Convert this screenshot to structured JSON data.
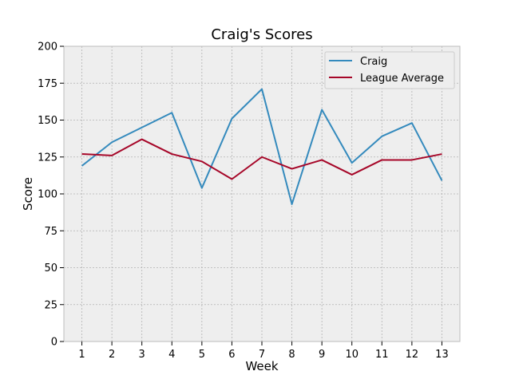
{
  "chart_data": {
    "type": "line",
    "title": "Craig's Scores",
    "xlabel": "Week",
    "ylabel": "Score",
    "x": [
      1,
      2,
      3,
      4,
      5,
      6,
      7,
      8,
      9,
      10,
      11,
      12,
      13
    ],
    "xlim": [
      0.4,
      13.6
    ],
    "ylim": [
      0,
      200
    ],
    "yticks": [
      0,
      25,
      50,
      75,
      100,
      125,
      150,
      175,
      200
    ],
    "grid": true,
    "legend_position": "top-right",
    "series": [
      {
        "name": "Craig",
        "color": "#348abd",
        "values": [
          119,
          135,
          145,
          155,
          104,
          151,
          171,
          93,
          157,
          121,
          139,
          148,
          109
        ]
      },
      {
        "name": "League Average",
        "color": "#a60628",
        "values": [
          127,
          126,
          137,
          127,
          122,
          110,
          125,
          117,
          123,
          113,
          123,
          123,
          127
        ]
      }
    ],
    "background_color": "#eeeeee",
    "grid_color": "#b2b2b2"
  }
}
